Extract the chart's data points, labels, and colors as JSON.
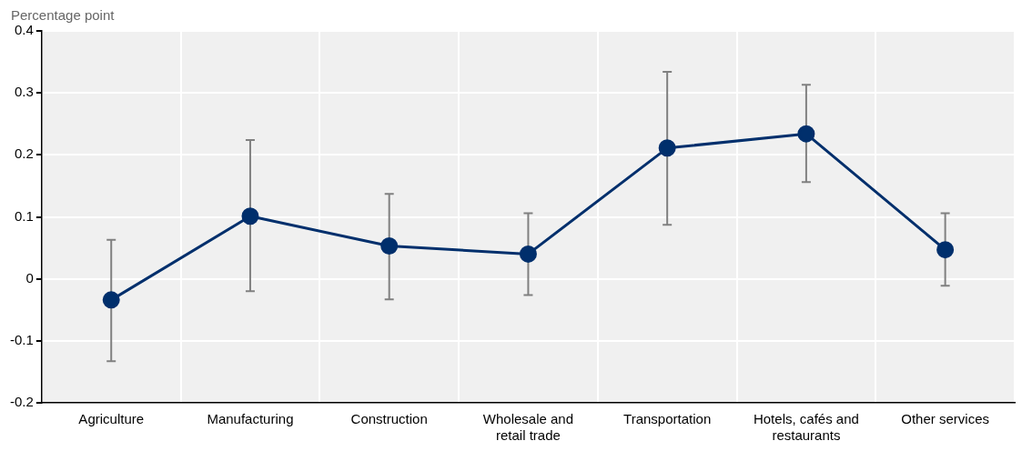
{
  "chart_data": {
    "type": "line",
    "ylabel": "Percentage point",
    "categories": [
      "Agriculture",
      "Manufacturing",
      "Construction",
      "Wholesale and retail trade",
      "Transportation",
      "Hotels, cafés and restaurants",
      "Other services"
    ],
    "series": [
      {
        "color": "#002f6c",
        "values": [
          -0.034,
          0.101,
          0.053,
          0.04,
          0.211,
          0.234,
          0.047
        ],
        "errors": [
          [
            -0.133,
            0.063
          ],
          [
            -0.02,
            0.224
          ],
          [
            -0.033,
            0.137
          ],
          [
            -0.026,
            0.106
          ],
          [
            0.087,
            0.334
          ],
          [
            0.156,
            0.313
          ],
          [
            -0.011,
            0.106
          ]
        ]
      }
    ],
    "ylim": [
      -0.2,
      0.4
    ],
    "yticks": [
      -0.2,
      -0.1,
      0,
      0.1,
      0.2,
      0.3,
      0.4
    ],
    "grid": true,
    "legend": false,
    "marker": "circle",
    "line_style": "solid"
  }
}
